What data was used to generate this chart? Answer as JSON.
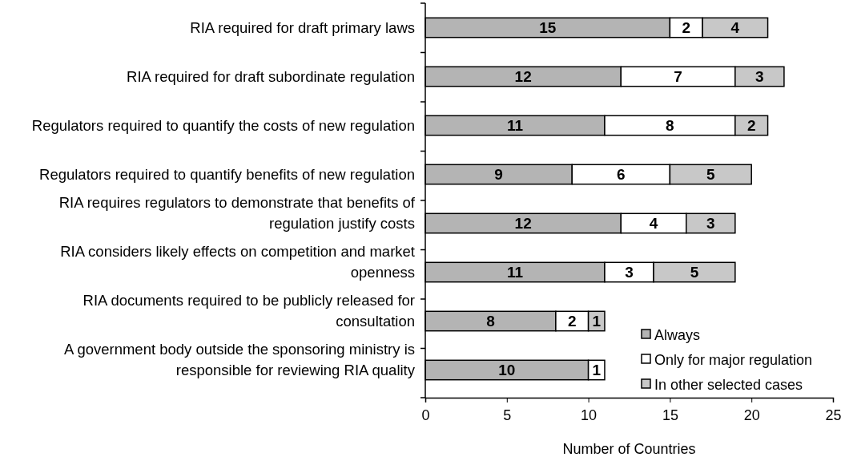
{
  "chart_data": {
    "type": "bar",
    "orientation": "horizontal",
    "stacked": true,
    "xlabel": "Number of Countries",
    "categories": [
      "RIA required for draft primary laws",
      "RIA required for draft subordinate regulation",
      "Regulators required to quantify the costs of new regulation",
      "Regulators required to quantify benefits of new regulation",
      "RIA requires regulators to demonstrate that benefits of regulation justify costs",
      "RIA considers likely effects on competition and market openness",
      "RIA documents required to be publicly released for consultation",
      "A government body outside the sponsoring ministry is responsible for reviewing RIA quality"
    ],
    "series": [
      {
        "name": "Always",
        "color": "#b4b4b4",
        "values": [
          15,
          12,
          11,
          9,
          12,
          11,
          8,
          10
        ]
      },
      {
        "name": "Only for major regulation",
        "color": "#ffffff",
        "values": [
          2,
          7,
          8,
          6,
          4,
          3,
          2,
          1
        ]
      },
      {
        "name": "In other selected cases",
        "color": "#c8c8c8",
        "values": [
          4,
          3,
          2,
          5,
          3,
          5,
          1,
          null
        ]
      }
    ],
    "xlim": [
      0,
      25
    ],
    "xticks": [
      0,
      5,
      10,
      15,
      20,
      25
    ],
    "data_labels": true,
    "legend": "bottom right",
    "grid": false
  }
}
